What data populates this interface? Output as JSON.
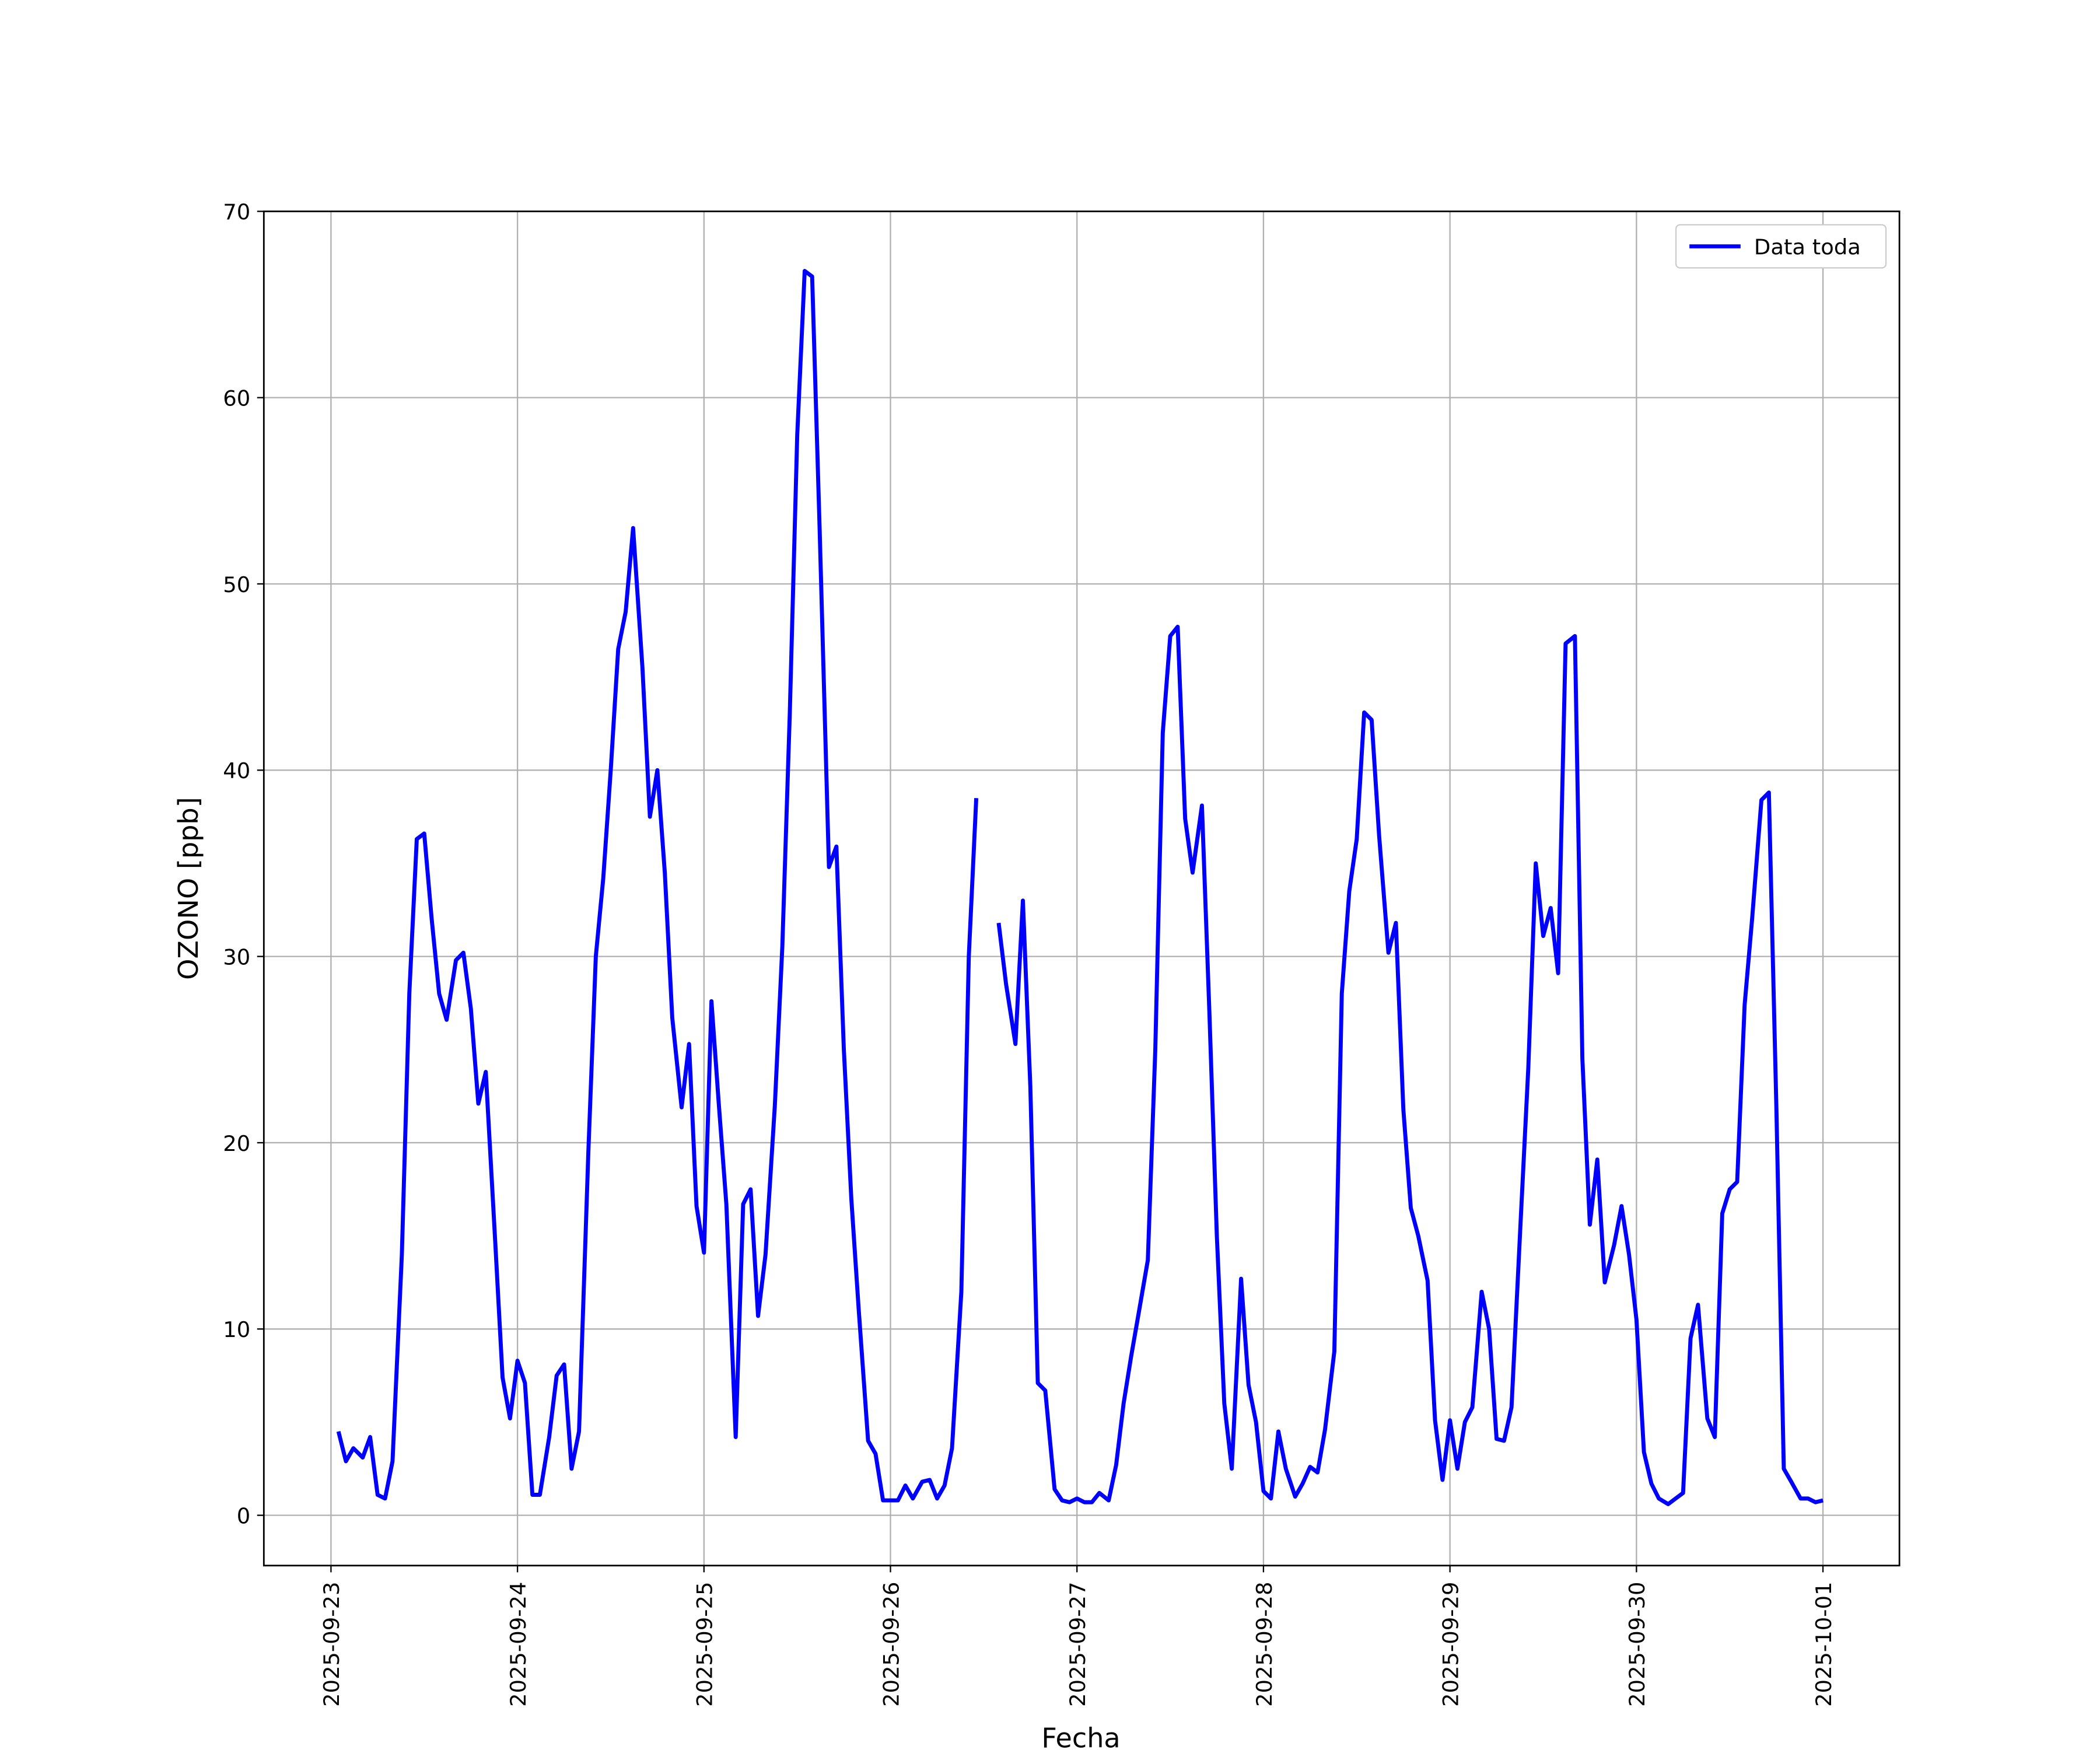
{
  "chart_data": {
    "type": "line",
    "xlabel": "Fecha",
    "ylabel": "OZONO [ppb]",
    "x": [
      0.04,
      0.08,
      0.12,
      0.17,
      0.21,
      0.25,
      0.29,
      0.33,
      0.38,
      0.42,
      0.46,
      0.5,
      0.54,
      0.58,
      0.62,
      0.67,
      0.71,
      0.75,
      0.79,
      0.83,
      0.88,
      0.92,
      0.96,
      1.0,
      1.04,
      1.08,
      1.12,
      1.17,
      1.21,
      1.25,
      1.29,
      1.33,
      1.38,
      1.42,
      1.46,
      1.5,
      1.54,
      1.58,
      1.62,
      1.67,
      1.71,
      1.75,
      1.79,
      1.83,
      1.88,
      1.92,
      1.96,
      2.0,
      2.04,
      2.08,
      2.12,
      2.17,
      2.21,
      2.25,
      2.29,
      2.33,
      2.38,
      2.42,
      2.46,
      2.5,
      2.54,
      2.58,
      2.62,
      2.67,
      2.71,
      2.75,
      2.79,
      2.83,
      2.88,
      2.92,
      2.96,
      3.0,
      3.04,
      3.08,
      3.12,
      3.17,
      3.21,
      3.25,
      3.29,
      3.33,
      3.38,
      3.42,
      3.46,
      3.52,
      3.58,
      3.62,
      3.67,
      3.71,
      3.75,
      3.79,
      3.83,
      3.88,
      3.92,
      3.96,
      4.0,
      4.04,
      4.08,
      4.12,
      4.17,
      4.21,
      4.25,
      4.29,
      4.33,
      4.38,
      4.42,
      4.46,
      4.5,
      4.54,
      4.58,
      4.62,
      4.67,
      4.71,
      4.75,
      4.79,
      4.83,
      4.88,
      4.92,
      4.96,
      5.0,
      5.04,
      5.08,
      5.12,
      5.17,
      5.21,
      5.25,
      5.29,
      5.33,
      5.38,
      5.42,
      5.46,
      5.5,
      5.54,
      5.58,
      5.62,
      5.67,
      5.71,
      5.75,
      5.79,
      5.83,
      5.88,
      5.92,
      5.96,
      6.0,
      6.04,
      6.08,
      6.12,
      6.17,
      6.21,
      6.25,
      6.29,
      6.33,
      6.38,
      6.42,
      6.46,
      6.5,
      6.54,
      6.58,
      6.62,
      6.67,
      6.71,
      6.75,
      6.79,
      6.83,
      6.88,
      6.92,
      6.96,
      7.0,
      7.04,
      7.08,
      7.12,
      7.17,
      7.21,
      7.25,
      7.29,
      7.33,
      7.38,
      7.42,
      7.46,
      7.5,
      7.54,
      7.58,
      7.62,
      7.67,
      7.71,
      7.75,
      7.79,
      7.83,
      7.88,
      7.92,
      7.96,
      8.0
    ],
    "series": [
      {
        "name": "Data toda",
        "color": "#0000ff",
        "values": [
          4.5,
          2.9,
          3.6,
          3.1,
          4.2,
          1.1,
          0.9,
          2.9,
          14,
          28,
          36.3,
          36.6,
          32,
          28,
          26.6,
          29.8,
          30.2,
          27.2,
          22.1,
          23.8,
          14.8,
          7.4,
          5.2,
          8.3,
          7.1,
          1.1,
          1.1,
          4.2,
          7.5,
          8.1,
          2.5,
          4.5,
          19.5,
          30,
          34.2,
          40,
          46.5,
          48.5,
          53,
          45.5,
          37.5,
          40,
          34.5,
          26.7,
          21.9,
          25.3,
          16.6,
          14.1,
          27.6,
          22,
          16.7,
          4.2,
          16.7,
          17.5,
          10.7,
          14,
          22,
          30.5,
          43,
          58,
          66.8,
          66.5,
          53,
          34.8,
          35.9,
          25,
          17,
          11,
          4,
          3.3,
          0.8,
          0.8,
          0.8,
          1.6,
          0.9,
          1.8,
          1.9,
          0.9,
          1.6,
          3.6,
          12,
          30,
          38.5,
          null,
          31.8,
          28.5,
          25.3,
          33,
          23,
          7.1,
          6.7,
          1.4,
          0.8,
          0.7,
          0.9,
          0.7,
          0.7,
          1.2,
          0.8,
          2.7,
          6,
          8.5,
          10.8,
          13.7,
          25,
          42,
          47.2,
          47.7,
          37.4,
          34.5,
          38.1,
          27,
          15,
          6,
          2.5,
          12.7,
          7,
          5,
          1.3,
          0.9,
          4.5,
          2.5,
          1,
          1.7,
          2.6,
          2.3,
          4.6,
          8.8,
          28,
          33.5,
          36.3,
          43.1,
          42.7,
          36.5,
          30.2,
          31.8,
          21.8,
          16.5,
          15,
          12.6,
          5.1,
          1.9,
          5.1,
          2.5,
          5,
          5.8,
          12,
          10,
          4.1,
          4,
          5.8,
          16,
          24,
          35,
          31.1,
          32.6,
          29.1,
          46.8,
          47.2,
          24.5,
          15.6,
          19.1,
          12.5,
          14.5,
          16.6,
          14,
          10.5,
          3.4,
          1.7,
          0.9,
          0.6,
          0.9,
          1.2,
          9.5,
          11.3,
          5.2,
          4.2,
          16.2,
          17.5,
          17.9,
          27.4,
          32,
          38.4,
          38.8,
          22,
          2.5,
          1.8,
          0.9,
          0.9,
          0.7,
          0.8
        ]
      }
    ],
    "xlim": [
      -0.36,
      8.41
    ],
    "xticks": [
      {
        "value": 0,
        "label": "2025-09-23"
      },
      {
        "value": 1,
        "label": "2025-09-24"
      },
      {
        "value": 2,
        "label": "2025-09-25"
      },
      {
        "value": 3,
        "label": "2025-09-26"
      },
      {
        "value": 4,
        "label": "2025-09-27"
      },
      {
        "value": 5,
        "label": "2025-09-28"
      },
      {
        "value": 6,
        "label": "2025-09-29"
      },
      {
        "value": 7,
        "label": "2025-09-30"
      },
      {
        "value": 8,
        "label": "2025-10-01"
      }
    ],
    "ylim": [
      -2.7,
      70
    ],
    "yticks": [
      0,
      10,
      20,
      30,
      40,
      50,
      60,
      70
    ],
    "grid": true,
    "legend": "upper right"
  }
}
